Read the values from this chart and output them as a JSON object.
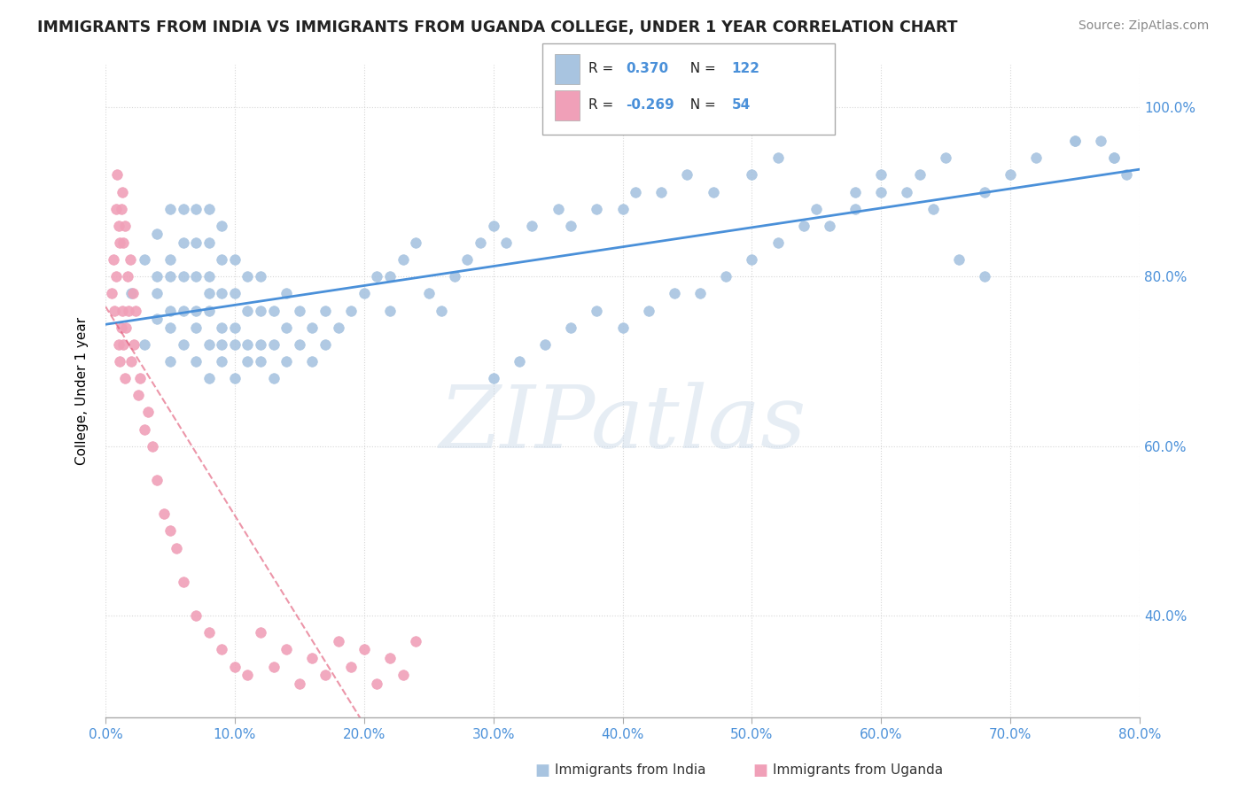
{
  "title": "IMMIGRANTS FROM INDIA VS IMMIGRANTS FROM UGANDA COLLEGE, UNDER 1 YEAR CORRELATION CHART",
  "source": "Source: ZipAtlas.com",
  "ylabel": "College, Under 1 year",
  "yticks": [
    "40.0%",
    "60.0%",
    "80.0%",
    "100.0%"
  ],
  "ytick_vals": [
    0.4,
    0.6,
    0.8,
    1.0
  ],
  "xlim": [
    0.0,
    0.8
  ],
  "ylim": [
    0.28,
    1.05
  ],
  "legend_R1": "0.370",
  "legend_N1": "122",
  "legend_R2": "-0.269",
  "legend_N2": "54",
  "color_india": "#a8c4e0",
  "color_uganda": "#f0a0b8",
  "trendline_india_color": "#4a90d9",
  "trendline_uganda_color": "#e05070",
  "watermark_zip": "ZIP",
  "watermark_atlas": "atlas",
  "watermark_color": "#c8d8e8",
  "india_scatter": {
    "x": [
      0.02,
      0.03,
      0.03,
      0.04,
      0.04,
      0.04,
      0.04,
      0.05,
      0.05,
      0.05,
      0.05,
      0.05,
      0.05,
      0.06,
      0.06,
      0.06,
      0.06,
      0.06,
      0.07,
      0.07,
      0.07,
      0.07,
      0.07,
      0.07,
      0.08,
      0.08,
      0.08,
      0.08,
      0.08,
      0.08,
      0.08,
      0.09,
      0.09,
      0.09,
      0.09,
      0.09,
      0.09,
      0.1,
      0.1,
      0.1,
      0.1,
      0.1,
      0.11,
      0.11,
      0.11,
      0.11,
      0.12,
      0.12,
      0.12,
      0.12,
      0.13,
      0.13,
      0.13,
      0.14,
      0.14,
      0.14,
      0.15,
      0.15,
      0.16,
      0.16,
      0.17,
      0.17,
      0.18,
      0.19,
      0.2,
      0.21,
      0.22,
      0.22,
      0.23,
      0.24,
      0.25,
      0.26,
      0.27,
      0.28,
      0.29,
      0.3,
      0.31,
      0.33,
      0.35,
      0.36,
      0.38,
      0.4,
      0.41,
      0.43,
      0.45,
      0.47,
      0.5,
      0.52,
      0.55,
      0.58,
      0.6,
      0.63,
      0.65,
      0.68,
      0.7,
      0.72,
      0.75,
      0.77,
      0.78,
      0.79,
      0.3,
      0.32,
      0.34,
      0.36,
      0.38,
      0.4,
      0.42,
      0.44,
      0.46,
      0.48,
      0.5,
      0.52,
      0.54,
      0.56,
      0.58,
      0.6,
      0.62,
      0.64,
      0.66,
      0.68,
      0.75,
      0.78
    ],
    "y": [
      0.78,
      0.72,
      0.82,
      0.75,
      0.8,
      0.85,
      0.78,
      0.7,
      0.76,
      0.8,
      0.82,
      0.88,
      0.74,
      0.72,
      0.76,
      0.8,
      0.84,
      0.88,
      0.7,
      0.74,
      0.76,
      0.8,
      0.84,
      0.88,
      0.68,
      0.72,
      0.76,
      0.78,
      0.8,
      0.84,
      0.88,
      0.7,
      0.72,
      0.74,
      0.78,
      0.82,
      0.86,
      0.68,
      0.72,
      0.74,
      0.78,
      0.82,
      0.7,
      0.72,
      0.76,
      0.8,
      0.7,
      0.72,
      0.76,
      0.8,
      0.68,
      0.72,
      0.76,
      0.7,
      0.74,
      0.78,
      0.72,
      0.76,
      0.7,
      0.74,
      0.72,
      0.76,
      0.74,
      0.76,
      0.78,
      0.8,
      0.76,
      0.8,
      0.82,
      0.84,
      0.78,
      0.76,
      0.8,
      0.82,
      0.84,
      0.86,
      0.84,
      0.86,
      0.88,
      0.86,
      0.88,
      0.88,
      0.9,
      0.9,
      0.92,
      0.9,
      0.92,
      0.94,
      0.88,
      0.9,
      0.92,
      0.92,
      0.94,
      0.9,
      0.92,
      0.94,
      0.96,
      0.96,
      0.94,
      0.92,
      0.68,
      0.7,
      0.72,
      0.74,
      0.76,
      0.74,
      0.76,
      0.78,
      0.78,
      0.8,
      0.82,
      0.84,
      0.86,
      0.86,
      0.88,
      0.9,
      0.9,
      0.88,
      0.82,
      0.8,
      0.96,
      0.94
    ]
  },
  "uganda_scatter": {
    "x": [
      0.005,
      0.006,
      0.007,
      0.008,
      0.008,
      0.009,
      0.01,
      0.01,
      0.011,
      0.011,
      0.012,
      0.012,
      0.013,
      0.013,
      0.014,
      0.014,
      0.015,
      0.015,
      0.016,
      0.017,
      0.018,
      0.019,
      0.02,
      0.021,
      0.022,
      0.023,
      0.025,
      0.027,
      0.03,
      0.033,
      0.036,
      0.04,
      0.045,
      0.05,
      0.055,
      0.06,
      0.07,
      0.08,
      0.09,
      0.1,
      0.11,
      0.12,
      0.13,
      0.14,
      0.15,
      0.16,
      0.17,
      0.18,
      0.19,
      0.2,
      0.21,
      0.22,
      0.23,
      0.24
    ],
    "y": [
      0.78,
      0.82,
      0.76,
      0.88,
      0.8,
      0.92,
      0.72,
      0.86,
      0.7,
      0.84,
      0.74,
      0.88,
      0.76,
      0.9,
      0.72,
      0.84,
      0.68,
      0.86,
      0.74,
      0.8,
      0.76,
      0.82,
      0.7,
      0.78,
      0.72,
      0.76,
      0.66,
      0.68,
      0.62,
      0.64,
      0.6,
      0.56,
      0.52,
      0.5,
      0.48,
      0.44,
      0.4,
      0.38,
      0.36,
      0.34,
      0.33,
      0.38,
      0.34,
      0.36,
      0.32,
      0.35,
      0.33,
      0.37,
      0.34,
      0.36,
      0.32,
      0.35,
      0.33,
      0.37
    ]
  }
}
